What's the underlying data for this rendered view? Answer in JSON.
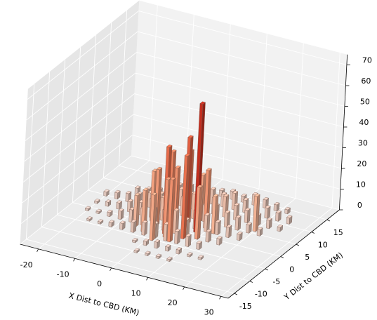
{
  "chart_data": {
    "type": "bar3d",
    "xlabel": "X Dist to CBD (KM)",
    "ylabel": "Y Dist to CBD (KM)",
    "xlim": [
      -25,
      32
    ],
    "ylim": [
      -17,
      19
    ],
    "zlim": [
      0,
      75
    ],
    "xticks": [
      -20,
      -10,
      0,
      10,
      20,
      30
    ],
    "yticks": [
      -15,
      -10,
      -5,
      0,
      5,
      10,
      15
    ],
    "zticks": [
      0,
      10,
      20,
      30,
      40,
      50,
      60,
      70
    ],
    "grid": true,
    "colormap": [
      "#d9c6bf",
      "#f4b090",
      "#ec7a55",
      "#d23b26",
      "#a40f0f"
    ],
    "edgecolor": "#6e5148",
    "x": [
      4,
      7,
      10,
      13,
      16,
      19,
      22,
      -8,
      -5,
      -2,
      1,
      4,
      7,
      10,
      13,
      16,
      19,
      22,
      25,
      -14,
      -11,
      -8,
      -5,
      -2,
      1,
      4,
      7,
      10,
      13,
      16,
      19,
      22,
      25,
      -20,
      -17,
      -14,
      -11,
      -8,
      -5,
      -2,
      1,
      4,
      7,
      10,
      13,
      16,
      19,
      22,
      -20,
      -17,
      -14,
      -11,
      -8,
      -5,
      -2,
      1,
      4,
      7,
      10,
      13,
      16,
      19,
      -20,
      -17,
      -14,
      -11,
      -8,
      -5,
      -2,
      1,
      4,
      7,
      10,
      13,
      16,
      -17,
      -14,
      -11,
      -8,
      -5,
      -2,
      1,
      4,
      7,
      10,
      13,
      -2,
      1,
      4,
      7,
      10,
      13,
      16,
      1,
      4,
      7,
      10,
      8,
      6,
      2,
      0,
      4,
      -2,
      -4,
      7,
      5,
      3,
      -3,
      9,
      10,
      1,
      -1,
      12,
      20,
      6,
      -6,
      3
    ],
    "y": [
      14,
      14,
      14,
      14,
      14,
      14,
      14,
      11,
      11,
      11,
      11,
      11,
      11,
      11,
      11,
      11,
      11,
      11,
      11,
      8,
      8,
      8,
      8,
      8,
      8,
      8,
      8,
      8,
      8,
      8,
      8,
      8,
      8,
      5,
      5,
      5,
      5,
      5,
      5,
      5,
      5,
      5,
      5,
      5,
      5,
      5,
      5,
      5,
      2,
      2,
      2,
      2,
      2,
      2,
      2,
      2,
      2,
      2,
      2,
      2,
      2,
      2,
      -1,
      -1,
      -1,
      -1,
      -1,
      -1,
      -1,
      -1,
      -1,
      -1,
      -1,
      -1,
      -1,
      -4,
      -4,
      -4,
      -4,
      -4,
      -4,
      -4,
      -4,
      -4,
      -4,
      -4,
      -7,
      -7,
      -7,
      -7,
      -7,
      -7,
      -7,
      -10,
      -10,
      -10,
      -10,
      1,
      0,
      -2,
      2,
      3,
      0,
      1,
      -2,
      -4,
      -3,
      -3,
      3,
      -1,
      -5,
      4,
      2,
      6,
      5,
      -2,
      0
    ],
    "values": [
      3,
      4,
      3,
      5,
      4,
      3,
      2,
      4,
      5,
      6,
      5,
      7,
      6,
      8,
      6,
      7,
      5,
      4,
      3,
      3,
      4,
      5,
      6,
      8,
      7,
      9,
      8,
      10,
      7,
      6,
      5,
      4,
      2,
      2,
      3,
      4,
      5,
      7,
      8,
      10,
      9,
      12,
      8,
      9,
      7,
      6,
      4,
      3,
      1,
      2,
      3,
      5,
      6,
      9,
      11,
      10,
      13,
      9,
      8,
      6,
      5,
      3,
      1,
      1,
      2,
      4,
      6,
      8,
      9,
      10,
      11,
      8,
      7,
      5,
      3,
      1,
      1,
      2,
      3,
      5,
      6,
      7,
      8,
      6,
      5,
      3,
      1,
      2,
      3,
      2,
      2,
      1,
      1,
      1,
      1,
      1,
      1,
      62,
      46,
      42,
      34,
      35,
      27,
      24,
      40,
      30,
      28,
      20,
      28,
      25,
      22,
      20,
      18,
      17,
      22,
      15,
      30
    ]
  }
}
